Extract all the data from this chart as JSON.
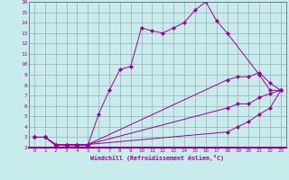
{
  "xlabel": "Windchill (Refroidissement éolien,°C)",
  "bg_color": "#c8ecec",
  "line_color": "#990099",
  "grid_color": "#9999aa",
  "spine_color": "#666688",
  "xlim": [
    -0.5,
    23.5
  ],
  "ylim": [
    2,
    16
  ],
  "xticks": [
    0,
    1,
    2,
    3,
    4,
    5,
    6,
    7,
    8,
    9,
    10,
    11,
    12,
    13,
    14,
    15,
    16,
    17,
    18,
    19,
    20,
    21,
    22,
    23
  ],
  "yticks": [
    2,
    3,
    4,
    5,
    6,
    7,
    8,
    9,
    10,
    11,
    12,
    13,
    14,
    15,
    16
  ],
  "lines": [
    {
      "x": [
        0,
        1,
        2,
        3,
        4,
        5,
        6,
        7,
        8,
        9,
        10,
        11,
        12,
        13,
        14,
        15,
        16,
        17,
        18,
        21,
        22,
        23
      ],
      "y": [
        3,
        3,
        2.2,
        2.2,
        2.2,
        2.2,
        5.2,
        7.5,
        9.5,
        9.8,
        13.5,
        13.2,
        13.0,
        13.5,
        14.0,
        15.2,
        16.0,
        14.2,
        13.0,
        9.0,
        7.5,
        7.5
      ]
    },
    {
      "x": [
        0,
        1,
        2,
        3,
        4,
        5,
        18,
        19,
        20,
        21,
        22,
        23
      ],
      "y": [
        3,
        3,
        2.3,
        2.3,
        2.3,
        2.3,
        8.5,
        8.8,
        8.8,
        9.2,
        8.2,
        7.5
      ]
    },
    {
      "x": [
        0,
        1,
        2,
        3,
        4,
        5,
        18,
        19,
        20,
        21,
        22,
        23
      ],
      "y": [
        3,
        3,
        2.3,
        2.3,
        2.3,
        2.3,
        5.8,
        6.2,
        6.2,
        6.8,
        7.2,
        7.5
      ]
    },
    {
      "x": [
        0,
        1,
        2,
        3,
        4,
        5,
        18,
        19,
        20,
        21,
        22,
        23
      ],
      "y": [
        3,
        3,
        2.3,
        2.3,
        2.3,
        2.3,
        3.5,
        4.0,
        4.5,
        5.2,
        5.8,
        7.5
      ]
    }
  ]
}
